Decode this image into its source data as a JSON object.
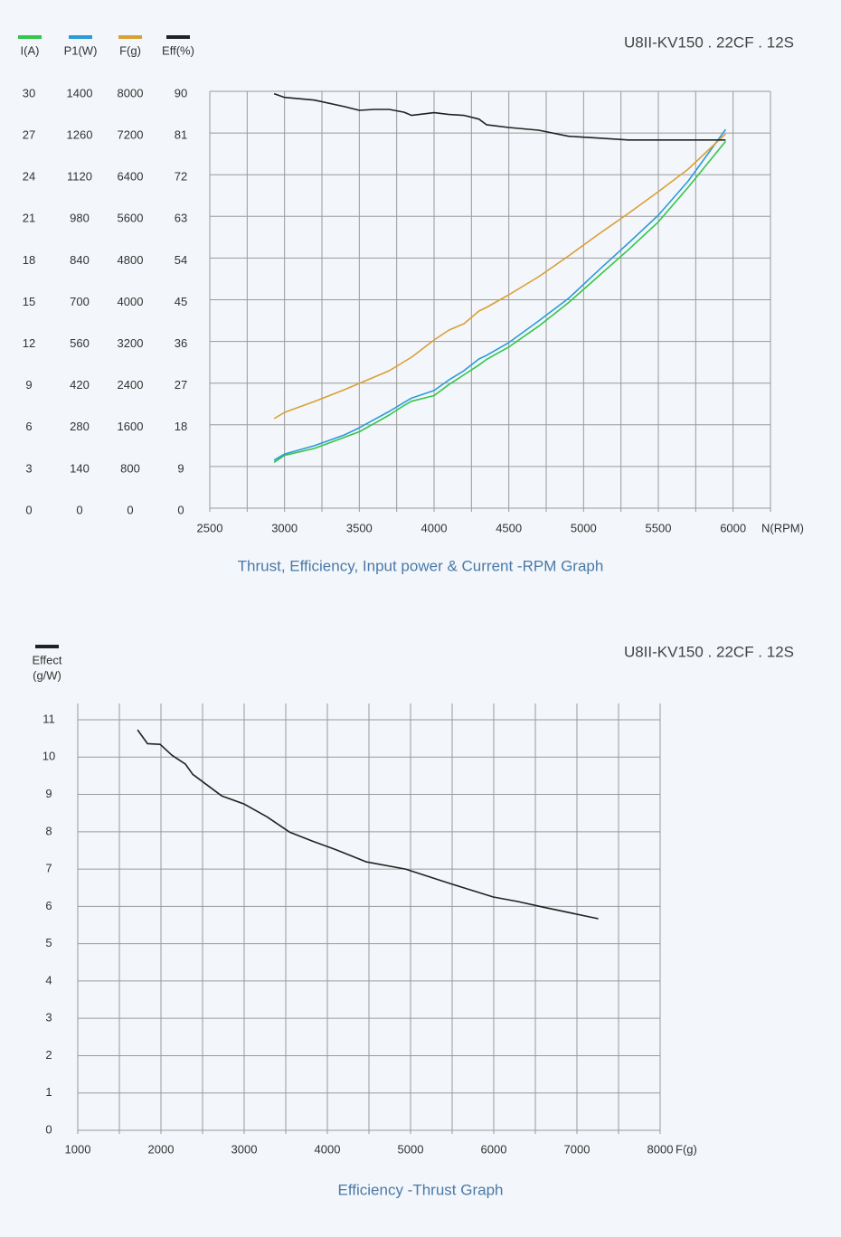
{
  "chart_data": [
    {
      "type": "line",
      "title": "U8II-KV150 . 22CF . 12S",
      "caption": "Thrust, Efficiency, Input power & Current -RPM Graph",
      "xlabel": "N(RPM)",
      "x": [
        2930,
        3000,
        3200,
        3400,
        3500,
        3600,
        3700,
        3800,
        3850,
        4000,
        4100,
        4200,
        4300,
        4350,
        4500,
        4700,
        4900,
        5100,
        5300,
        5500,
        5700,
        5950
      ],
      "xlim": [
        2500,
        6250
      ],
      "xticks": [
        2500,
        3000,
        3500,
        4000,
        4500,
        5000,
        5500,
        6000
      ],
      "xgrid": [
        2500,
        2750,
        3000,
        3250,
        3500,
        3750,
        4000,
        4250,
        4500,
        4750,
        5000,
        5250,
        5500,
        5750,
        6000,
        6250
      ],
      "series": [
        {
          "name": "I(A)",
          "color": "#33c64a",
          "ylim": [
            0,
            30
          ],
          "yticks": [
            0,
            3,
            6,
            9,
            12,
            15,
            18,
            21,
            24,
            27,
            30
          ],
          "values": [
            3.3,
            3.8,
            4.3,
            5.1,
            5.5,
            6.1,
            6.7,
            7.4,
            7.7,
            8.1,
            8.9,
            9.6,
            10.3,
            10.7,
            11.6,
            13.1,
            14.8,
            16.7,
            18.6,
            20.6,
            23.1,
            26.4
          ]
        },
        {
          "name": "P1(W)",
          "color": "#2c9ad8",
          "ylim": [
            0,
            1400
          ],
          "yticks": [
            0,
            140,
            280,
            420,
            560,
            700,
            840,
            980,
            1120,
            1260,
            1400
          ],
          "values": [
            161,
            182,
            210,
            246,
            270,
            298,
            325,
            355,
            370,
            395,
            431,
            462,
            501,
            513,
            556,
            629,
            705,
            799,
            890,
            984,
            1099,
            1272
          ]
        },
        {
          "name": "F(g)",
          "color": "#d9a034",
          "ylim": [
            0,
            8000
          ],
          "yticks": [
            0,
            800,
            1600,
            2400,
            3200,
            4000,
            4800,
            5600,
            6400,
            7200,
            8000
          ],
          "values": [
            1718,
            1840,
            2048,
            2273,
            2395,
            2516,
            2638,
            2811,
            2898,
            3228,
            3419,
            3540,
            3783,
            3852,
            4095,
            4443,
            4842,
            5258,
            5657,
            6074,
            6508,
            7184
          ]
        },
        {
          "name": "Eff(%)",
          "color": "#222222",
          "ylim": [
            0,
            90
          ],
          "yticks": [
            0,
            9,
            18,
            27,
            36,
            45,
            54,
            63,
            72,
            81,
            90
          ],
          "values": [
            89.5,
            88.7,
            88.1,
            86.7,
            85.9,
            86.1,
            86.1,
            85.5,
            84.8,
            85.4,
            85.0,
            84.8,
            84.0,
            82.8,
            82.2,
            81.6,
            80.3,
            79.9,
            79.5,
            79.5,
            79.5,
            79.5
          ]
        }
      ]
    },
    {
      "type": "line",
      "title": "U8II-KV150 . 22CF . 12S",
      "caption": "Efficiency -Thrust Graph",
      "xlabel": "F(g)",
      "ylabel": "(g/W)",
      "x": [
        1718,
        1838,
        1990,
        2132,
        2295,
        2382,
        2513,
        2730,
        3002,
        3274,
        3546,
        3818,
        4090,
        4471,
        4939,
        5505,
        5995,
        6289,
        6593,
        7257
      ],
      "xlim": [
        1000,
        8000
      ],
      "xticks": [
        1000,
        2000,
        3000,
        4000,
        5000,
        6000,
        7000,
        8000
      ],
      "xgrid": [
        1000,
        1500,
        2000,
        2500,
        3000,
        3500,
        4000,
        4500,
        5000,
        5500,
        6000,
        6500,
        7000,
        7500,
        8000
      ],
      "ylim": [
        0,
        11
      ],
      "yticks": [
        0,
        1,
        2,
        3,
        4,
        5,
        6,
        7,
        8,
        9,
        10,
        11
      ],
      "series": [
        {
          "name": "Effect",
          "color": "#222222",
          "values": [
            10.73,
            10.36,
            10.34,
            10.05,
            9.81,
            9.54,
            9.32,
            8.96,
            8.74,
            8.4,
            7.99,
            7.75,
            7.53,
            7.19,
            7.0,
            6.59,
            6.25,
            6.13,
            5.98,
            5.67
          ]
        }
      ]
    }
  ]
}
